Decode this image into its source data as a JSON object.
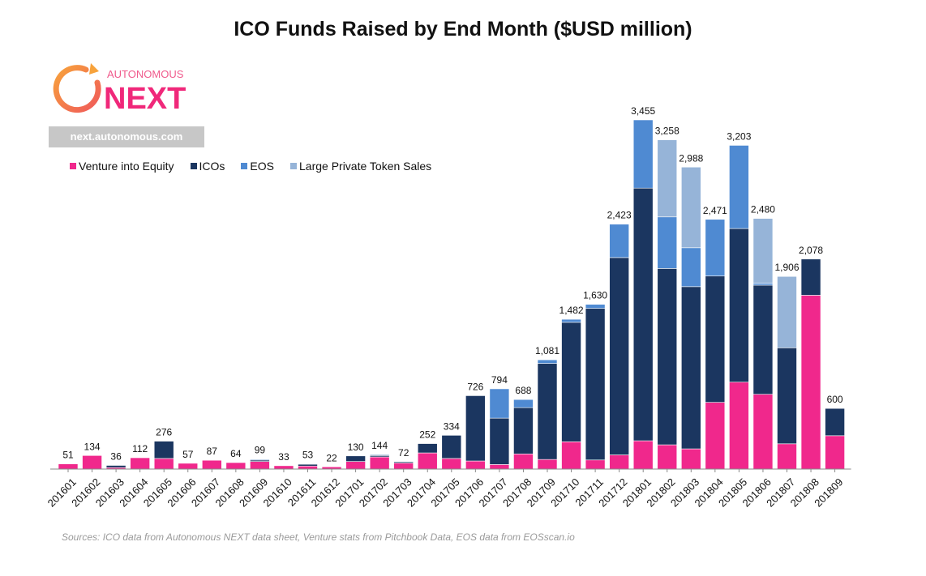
{
  "chart_data": {
    "type": "bar",
    "stacked": true,
    "title": "ICO Funds Raised by End Month ($USD million)",
    "xlabel": "",
    "ylabel": "",
    "ylim": [
      0,
      3600
    ],
    "categories": [
      "201601",
      "201602",
      "201603",
      "201604",
      "201605",
      "201606",
      "201607",
      "201608",
      "201609",
      "201610",
      "201611",
      "201612",
      "201701",
      "201702",
      "201703",
      "201704",
      "201705",
      "201706",
      "201707",
      "201708",
      "201709",
      "201710",
      "201711",
      "201712",
      "201801",
      "201802",
      "201803",
      "201804",
      "201805",
      "201806",
      "201807",
      "201808",
      "201809"
    ],
    "series": [
      {
        "name": "Venture into Equity",
        "color": "#f0288c",
        "values": [
          51,
          134,
          15,
          112,
          105,
          57,
          87,
          64,
          75,
          33,
          30,
          22,
          75,
          120,
          60,
          160,
          105,
          80,
          45,
          150,
          95,
          270,
          90,
          140,
          280,
          240,
          200,
          660,
          860,
          740,
          250,
          1720,
          330
        ]
      },
      {
        "name": "ICOs",
        "color": "#1b3660",
        "values": [
          0,
          0,
          21,
          0,
          171,
          0,
          0,
          0,
          14,
          0,
          18,
          0,
          55,
          14,
          12,
          92,
          229,
          646,
          459,
          458,
          950,
          1182,
          1500,
          1953,
          2500,
          1745,
          1605,
          1250,
          1520,
          1080,
          950,
          358,
          270
        ]
      },
      {
        "name": "EOS",
        "color": "#4f8ad2",
        "values": [
          0,
          0,
          0,
          0,
          0,
          0,
          0,
          0,
          0,
          0,
          0,
          0,
          0,
          0,
          0,
          0,
          0,
          0,
          290,
          80,
          36,
          30,
          40,
          330,
          675,
          510,
          385,
          561,
          823,
          20,
          0,
          0,
          0
        ]
      },
      {
        "name": "Large Private Token Sales",
        "color": "#96b4d8",
        "values": [
          0,
          0,
          0,
          0,
          0,
          0,
          0,
          0,
          10,
          0,
          5,
          0,
          0,
          10,
          0,
          0,
          0,
          0,
          0,
          0,
          0,
          0,
          0,
          0,
          0,
          763,
          798,
          0,
          0,
          640,
          706,
          0,
          0
        ]
      }
    ],
    "total_labels": [
      "51",
      "134",
      "36",
      "112",
      "276",
      "57",
      "87",
      "64",
      "99",
      "33",
      "53",
      "22",
      "130",
      "144",
      "72",
      "252",
      "334",
      "726",
      "794",
      "688",
      "1,081",
      "1,482",
      "1,630",
      "2,423",
      "3,455",
      "3,258",
      "2,988",
      "2,471",
      "3,203",
      "2,480",
      "1,906",
      "2,078",
      "600"
    ],
    "totals": [
      51,
      134,
      36,
      112,
      276,
      57,
      87,
      64,
      99,
      33,
      53,
      22,
      130,
      144,
      72,
      252,
      334,
      726,
      794,
      688,
      1081,
      1482,
      1630,
      2423,
      3455,
      3258,
      2988,
      2471,
      3203,
      2480,
      1906,
      2078,
      600
    ],
    "legend": [
      "Venture into Equity",
      "ICOs",
      "EOS",
      "Large Private Token Sales"
    ],
    "legend_position": "top-left",
    "grid": false
  },
  "branding": {
    "logo_top_text": "AUTONOMOUS",
    "logo_main_text": "NEXT",
    "website": "next.autonomous.com"
  },
  "source_note": "Sources: ICO data from Autonomous NEXT data sheet, Venture stats from Pitchbook Data, EOS data from EOSscan.io"
}
